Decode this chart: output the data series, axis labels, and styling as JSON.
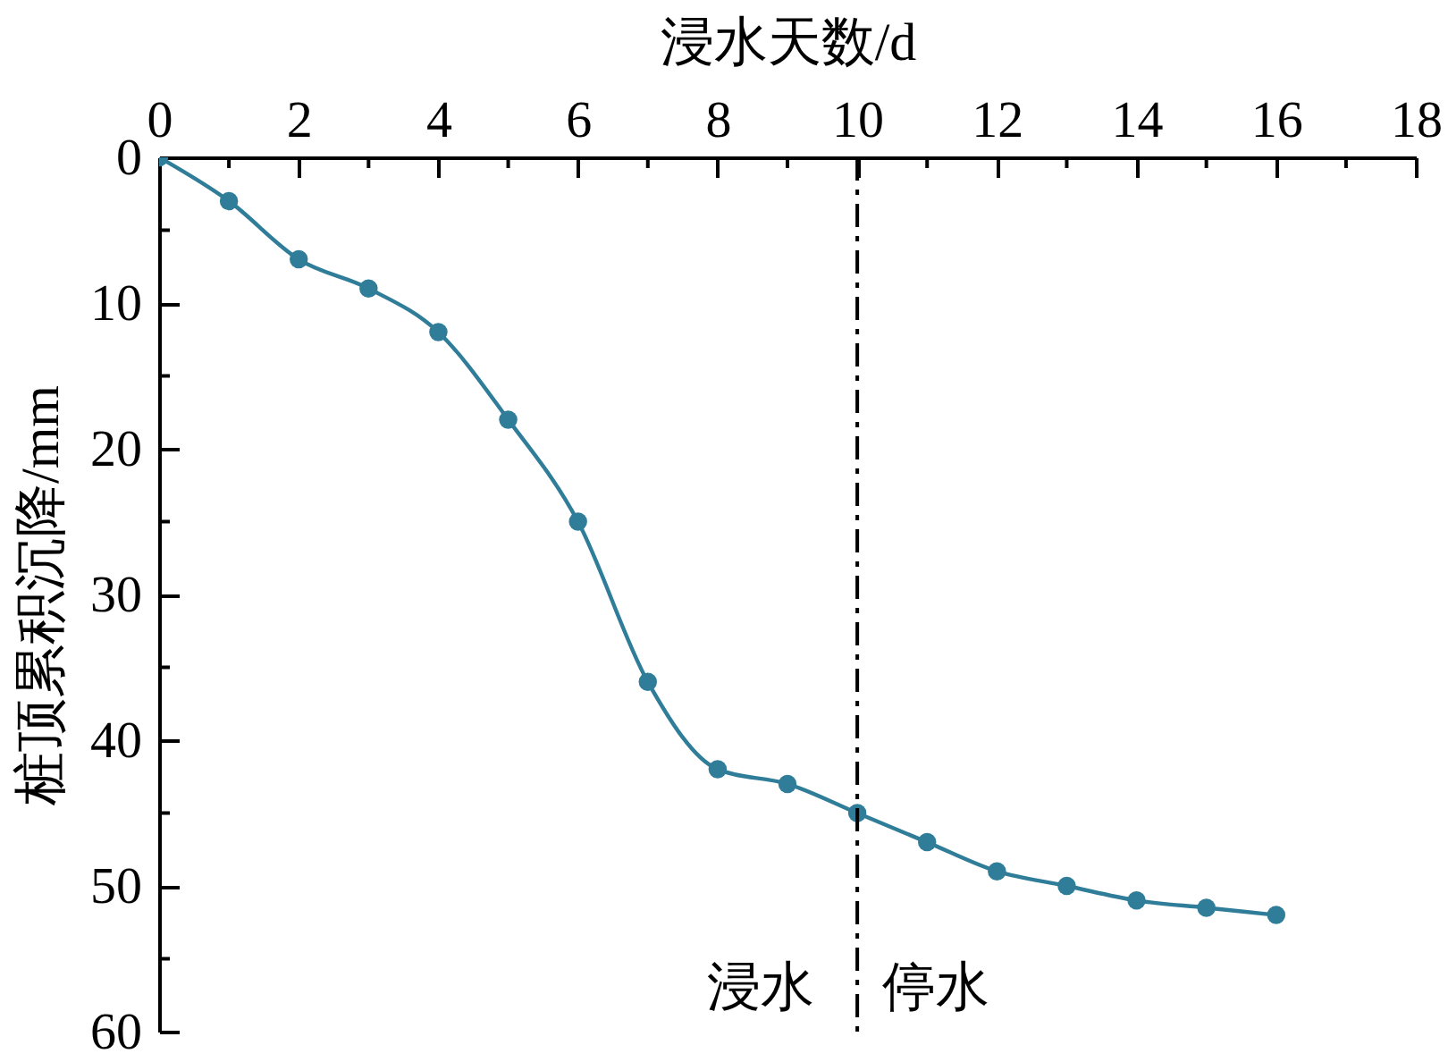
{
  "chart_data": {
    "type": "line",
    "xlabel": "浸水天数/d",
    "ylabel": "桩顶累积沉降/mm",
    "x": [
      0,
      1,
      2,
      3,
      4,
      5,
      6,
      7,
      8,
      9,
      10,
      11,
      12,
      13,
      14,
      15,
      16
    ],
    "values": [
      0,
      3,
      7,
      9,
      12,
      18,
      25,
      36,
      42,
      43,
      45,
      47,
      49,
      50,
      51,
      51.5,
      52
    ],
    "color": "#2f7d99",
    "marker": "circle",
    "line_style": "solid",
    "xlim": [
      0,
      18
    ],
    "ylim": [
      60,
      0
    ],
    "xticks": [
      0,
      {
        "value": 1,
        "label": null
      },
      2,
      {
        "value": 3,
        "label": null
      },
      4,
      {
        "value": 5,
        "label": null
      },
      6,
      {
        "value": 7,
        "label": null
      },
      8,
      {
        "value": 9,
        "label": null
      },
      10,
      {
        "value": 11,
        "label": null
      },
      12,
      {
        "value": 13,
        "label": null
      },
      14,
      {
        "value": 15,
        "label": null
      },
      16,
      {
        "value": 17,
        "label": null
      },
      18
    ],
    "yticks": [
      0,
      {
        "value": 5,
        "label": null
      },
      10,
      {
        "value": 15,
        "label": null
      },
      20,
      {
        "value": 25,
        "label": null
      },
      30,
      {
        "value": 35,
        "label": null
      },
      40,
      {
        "value": 45,
        "label": null
      },
      50,
      {
        "value": 55,
        "label": null
      },
      60
    ],
    "ref_lines": [
      {
        "axis": "x",
        "value": 10,
        "color": "#000000",
        "line_style": "dashdot"
      }
    ],
    "annotations": [
      "浸水",
      "停水"
    ]
  }
}
